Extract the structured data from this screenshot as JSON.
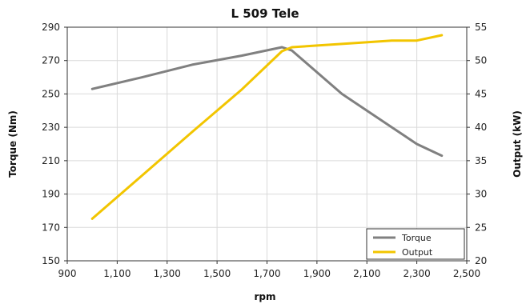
{
  "chart_data": {
    "type": "line",
    "title": "L 509 Tele",
    "xlabel": "rpm",
    "ylabel": "Torque (Nm)",
    "y2label": "Output (kW)",
    "xlim": [
      900,
      2500
    ],
    "ylim": [
      150,
      290
    ],
    "y2lim": [
      20,
      55
    ],
    "x_ticks": [
      900,
      1100,
      1300,
      1500,
      1700,
      1900,
      2100,
      2300,
      2500
    ],
    "x_tick_labels": [
      "900",
      "1,100",
      "1,300",
      "1,500",
      "1,700",
      "1,900",
      "2,100",
      "2,300",
      "2,500"
    ],
    "y_ticks": [
      150,
      170,
      190,
      210,
      230,
      250,
      270,
      290
    ],
    "y_tick_labels": [
      "150",
      "170",
      "190",
      "210",
      "230",
      "250",
      "270",
      "290"
    ],
    "y2_ticks": [
      20,
      25,
      30,
      35,
      40,
      45,
      50,
      55
    ],
    "y2_tick_labels": [
      "20",
      "25",
      "30",
      "35",
      "40",
      "45",
      "50",
      "55"
    ],
    "grid": true,
    "legend_position": "bottom-right",
    "series": [
      {
        "name": "Torque",
        "axis": "left",
        "color": "#808080",
        "points": [
          [
            1000,
            253
          ],
          [
            1200,
            260
          ],
          [
            1400,
            267.5
          ],
          [
            1600,
            273
          ],
          [
            1760,
            278
          ],
          [
            1800,
            276
          ],
          [
            2000,
            250
          ],
          [
            2200,
            230
          ],
          [
            2300,
            220
          ],
          [
            2400,
            213
          ]
        ]
      },
      {
        "name": "Output",
        "axis": "right",
        "color": "#f2c500",
        "points": [
          [
            1000,
            26.3
          ],
          [
            1200,
            32.8
          ],
          [
            1400,
            39.3
          ],
          [
            1600,
            45.7
          ],
          [
            1760,
            51.4
          ],
          [
            1800,
            52
          ],
          [
            2000,
            52.5
          ],
          [
            2200,
            53
          ],
          [
            2300,
            53
          ],
          [
            2400,
            53.8
          ]
        ]
      }
    ]
  }
}
